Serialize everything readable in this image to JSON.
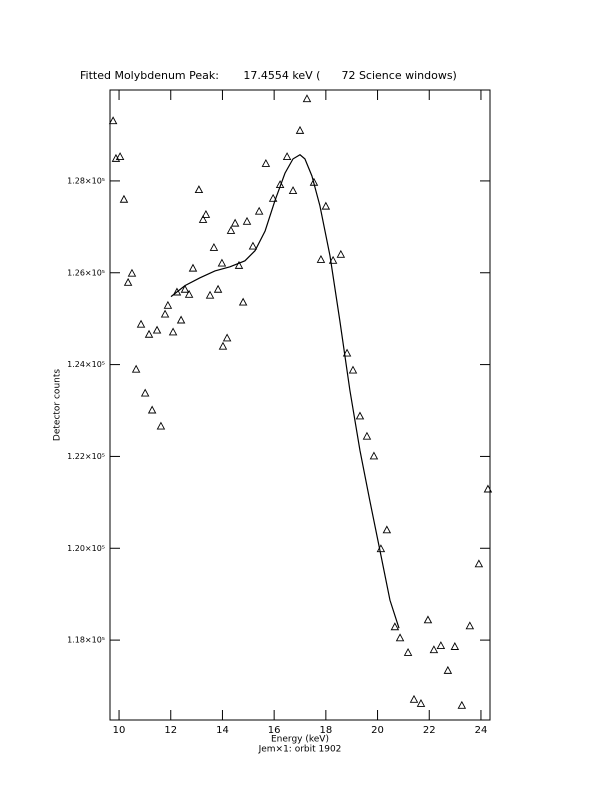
{
  "chart_data": {
    "type": "scatter",
    "title": "Fitted Molybdenum Peak:       17.4554 keV (      72 Science windows)",
    "x_label": "Energy (keV)",
    "subtitle": "Jem×1: orbit 1902",
    "y_label": "Detector counts",
    "xlim": [
      9.65,
      24.35
    ],
    "ylim": [
      116260,
      129980
    ],
    "xticks": [
      10,
      12,
      14,
      16,
      18,
      20,
      22,
      24
    ],
    "yticks": [
      {
        "value": 118000,
        "label": "1.18×10⁵"
      },
      {
        "value": 120000,
        "label": "1.20×10⁵"
      },
      {
        "value": 122000,
        "label": "1.22×10⁵"
      },
      {
        "value": 124000,
        "label": "1.24×10⁵"
      },
      {
        "value": 126000,
        "label": "1.26×10⁵"
      },
      {
        "value": 128000,
        "label": "1.28×10⁵"
      }
    ],
    "series": [
      {
        "kind": "points",
        "color": "#000000",
        "x": [
          9.77,
          9.88,
          10.04,
          10.19,
          10.35,
          10.5,
          10.66,
          10.85,
          11.01,
          11.16,
          11.28,
          11.47,
          11.62,
          11.78,
          11.89,
          12.09,
          12.24,
          12.4,
          12.55,
          12.71,
          12.86,
          13.09,
          13.25,
          13.36,
          13.52,
          13.67,
          13.83,
          13.98,
          14.02,
          14.18,
          14.33,
          14.49,
          14.64,
          14.8,
          14.95,
          15.18,
          15.42,
          15.68,
          15.96,
          16.23,
          16.5,
          16.73,
          17.0,
          17.27,
          17.54,
          17.81,
          18.0,
          18.28,
          18.58,
          18.82,
          19.05,
          19.32,
          19.59,
          19.86,
          20.13,
          20.36,
          20.67,
          20.87,
          21.18,
          21.41,
          21.68,
          21.95,
          22.18,
          22.45,
          22.72,
          22.99,
          23.26,
          23.57,
          23.92,
          24.27
        ],
        "values": [
          129300,
          128480,
          128520,
          127590,
          125780,
          125980,
          123890,
          124870,
          123370,
          124650,
          123000,
          124740,
          122650,
          125090,
          125280,
          124700,
          125570,
          124960,
          125630,
          125520,
          126090,
          127800,
          127150,
          127260,
          125500,
          126540,
          125630,
          126200,
          124390,
          124570,
          126910,
          127070,
          126150,
          125350,
          127110,
          126570,
          127330,
          128370,
          127610,
          127910,
          128520,
          127780,
          129090,
          129780,
          127960,
          126280,
          127440,
          126260,
          126390,
          124240,
          123870,
          122870,
          122430,
          122000,
          119980,
          120390,
          118280,
          118040,
          117720,
          116700,
          116610,
          118430,
          117780,
          117870,
          117330,
          117850,
          116570,
          118300,
          119650,
          121280
        ]
      },
      {
        "kind": "line",
        "color": "#000000",
        "x": [
          12.01,
          12.55,
          13.13,
          13.71,
          14.29,
          14.87,
          15.26,
          15.65,
          16.03,
          16.42,
          16.73,
          17.0,
          17.19,
          17.46,
          17.77,
          18.16,
          18.54,
          18.93,
          19.32,
          19.7,
          20.09,
          20.48,
          20.83
        ],
        "values": [
          125480,
          125720,
          125890,
          126040,
          126130,
          126260,
          126480,
          126910,
          127570,
          128170,
          128480,
          128570,
          128480,
          128110,
          127460,
          126370,
          124960,
          123440,
          122130,
          121040,
          119960,
          118870,
          118260
        ]
      }
    ]
  }
}
